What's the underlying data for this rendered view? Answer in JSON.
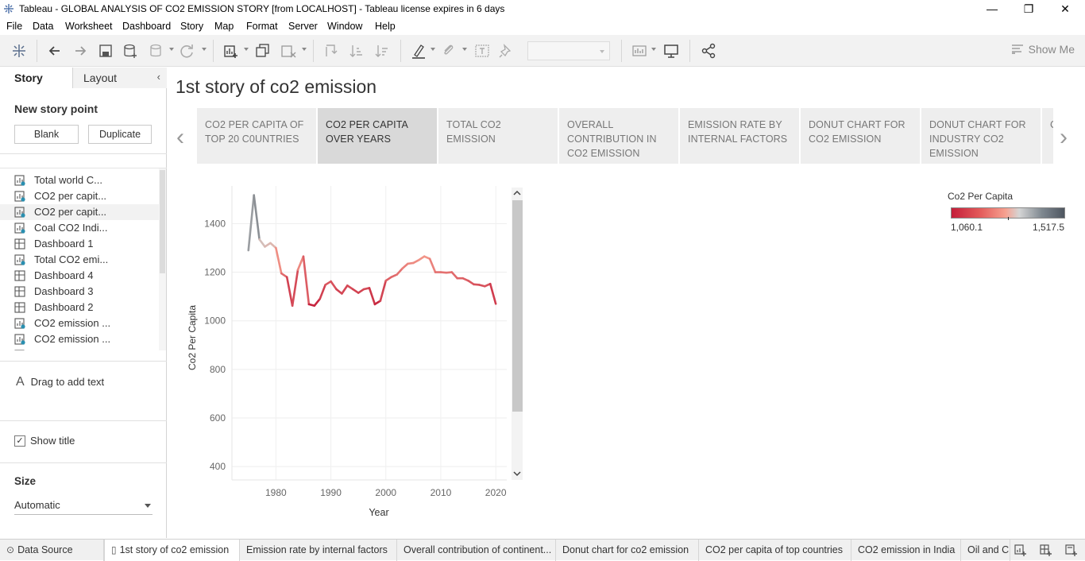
{
  "window": {
    "title": "Tableau - GLOBAL ANALYSIS OF CO2 EMISSION STORY [from LOCALHOST] - Tableau license expires in 6 days",
    "minimize": "—",
    "restore": "❐",
    "close": "✕"
  },
  "menu": [
    "File",
    "Data",
    "Worksheet",
    "Dashboard",
    "Story",
    "Map",
    "Format",
    "Server",
    "Window",
    "Help"
  ],
  "toolbar": {
    "show_me": "Show Me"
  },
  "leftpane": {
    "tab_story": "Story",
    "tab_layout": "Layout",
    "new_story_point": "New story point",
    "blank_button": "Blank",
    "duplicate_button": "Duplicate",
    "sheets": [
      {
        "label": "Total world C...",
        "type": "worksheet"
      },
      {
        "label": "CO2 per capit...",
        "type": "worksheet"
      },
      {
        "label": "CO2 per capit...",
        "type": "worksheet"
      },
      {
        "label": "Coal CO2 Indi...",
        "type": "worksheet"
      },
      {
        "label": "Dashboard 1",
        "type": "dashboard"
      },
      {
        "label": "Total CO2 emi...",
        "type": "worksheet"
      },
      {
        "label": "Dashboard 4",
        "type": "dashboard"
      },
      {
        "label": "Dashboard 3",
        "type": "dashboard"
      },
      {
        "label": "Dashboard 2",
        "type": "dashboard"
      },
      {
        "label": "CO2 emission ...",
        "type": "worksheet"
      },
      {
        "label": "CO2 emission ...",
        "type": "worksheet"
      },
      {
        "label": "Emission rat...",
        "type": "worksheet"
      }
    ],
    "drag_text": "Drag to add text",
    "show_title": "Show title",
    "size_label": "Size",
    "size_value": "Automatic"
  },
  "story": {
    "title": "1st story of co2 emission",
    "points": [
      "CO2 PER CAPITA OF TOP 20 C0UNTRIES",
      "CO2 PER CAPITA OVER YEARS",
      "TOTAL CO2 EMISSION",
      "OVERALL CONTRIBUTION IN CO2 EMISSION",
      "EMISSION RATE BY INTERNAL FACTORS",
      "DONUT CHART FOR CO2 EMISSION",
      "DONUT CHART FOR INDUSTRY CO2 EMISSION",
      "C"
    ],
    "active_point": 1
  },
  "legend": {
    "title": "Co2 Per Capita",
    "min_label": "1,060.1",
    "max_label": "1,517.5"
  },
  "colors": {
    "low": "#c41e3a",
    "mid": "#f6a190",
    "gray": "#c8c8c8",
    "high": "#4e5660"
  },
  "chart_data": {
    "type": "line",
    "xlabel": "Year",
    "ylabel": "Co2 Per Capita",
    "x_ticks": [
      1980,
      1990,
      2000,
      2010,
      2020
    ],
    "y_ticks": [
      400,
      600,
      800,
      1000,
      1200,
      1400
    ],
    "ylim": [
      345,
      1555
    ],
    "xlim": [
      1972,
      2022
    ],
    "color_range": [
      1060.1,
      1517.5
    ],
    "x": [
      1975,
      1976,
      1977,
      1978,
      1979,
      1980,
      1981,
      1982,
      1983,
      1984,
      1985,
      1986,
      1987,
      1988,
      1989,
      1990,
      1991,
      1992,
      1993,
      1994,
      1995,
      1996,
      1997,
      1998,
      1999,
      2000,
      2001,
      2002,
      2003,
      2004,
      2005,
      2006,
      2007,
      2008,
      2009,
      2010,
      2011,
      2012,
      2013,
      2014,
      2015,
      2016,
      2017,
      2018,
      2019,
      2020
    ],
    "values": [
      1290,
      1517,
      1335,
      1305,
      1320,
      1300,
      1195,
      1180,
      1062,
      1210,
      1265,
      1068,
      1062,
      1090,
      1148,
      1162,
      1130,
      1112,
      1145,
      1130,
      1115,
      1130,
      1135,
      1068,
      1082,
      1165,
      1180,
      1190,
      1215,
      1235,
      1238,
      1250,
      1265,
      1255,
      1200,
      1200,
      1198,
      1200,
      1175,
      1175,
      1165,
      1150,
      1148,
      1142,
      1152,
      1070
    ]
  },
  "bottom_tabs": [
    {
      "label": "Data Source",
      "icon": "database-icon"
    },
    {
      "label": "1st story of co2 emission",
      "icon": "story-icon"
    },
    {
      "label": "Emission rate by internal factors",
      "icon": ""
    },
    {
      "label": "Overall contribution of continent...",
      "icon": ""
    },
    {
      "label": "Donut chart for co2 emission",
      "icon": ""
    },
    {
      "label": "CO2 per capita of top countries",
      "icon": ""
    },
    {
      "label": "CO2 emission in India",
      "icon": ""
    },
    {
      "label": "Oil and C",
      "icon": ""
    }
  ]
}
